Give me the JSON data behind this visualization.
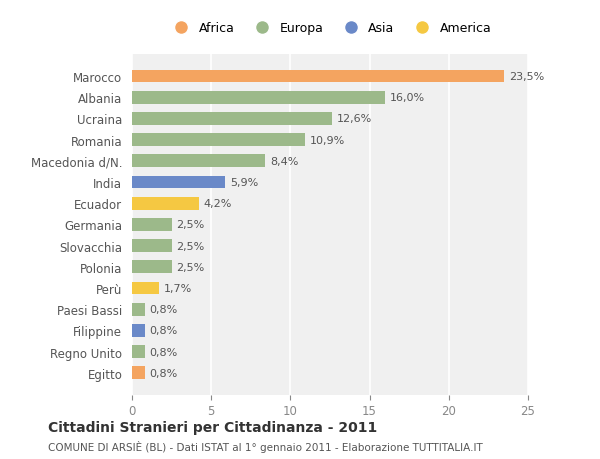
{
  "categories": [
    "Marocco",
    "Albania",
    "Ucraina",
    "Romania",
    "Macedonia d/N.",
    "India",
    "Ecuador",
    "Germania",
    "Slovacchia",
    "Polonia",
    "Perù",
    "Paesi Bassi",
    "Filippine",
    "Regno Unito",
    "Egitto"
  ],
  "values": [
    23.5,
    16.0,
    12.6,
    10.9,
    8.4,
    5.9,
    4.2,
    2.5,
    2.5,
    2.5,
    1.7,
    0.8,
    0.8,
    0.8,
    0.8
  ],
  "labels": [
    "23,5%",
    "16,0%",
    "12,6%",
    "10,9%",
    "8,4%",
    "5,9%",
    "4,2%",
    "2,5%",
    "2,5%",
    "2,5%",
    "1,7%",
    "0,8%",
    "0,8%",
    "0,8%",
    "0,8%"
  ],
  "colors": [
    "#F4A460",
    "#9CB98A",
    "#9CB98A",
    "#9CB98A",
    "#9CB98A",
    "#6A89C8",
    "#F5C842",
    "#9CB98A",
    "#9CB98A",
    "#9CB98A",
    "#F5C842",
    "#9CB98A",
    "#6A89C8",
    "#9CB98A",
    "#F4A460"
  ],
  "legend": [
    {
      "label": "Africa",
      "color": "#F4A460"
    },
    {
      "label": "Europa",
      "color": "#9CB98A"
    },
    {
      "label": "Asia",
      "color": "#6A89C8"
    },
    {
      "label": "America",
      "color": "#F5C842"
    }
  ],
  "title": "Cittadini Stranieri per Cittadinanza - 2011",
  "subtitle": "COMUNE DI ARSIÈ (BL) - Dati ISTAT al 1° gennaio 2011 - Elaborazione TUTTITALIA.IT",
  "xlim": [
    0,
    25
  ],
  "xticks": [
    0,
    5,
    10,
    15,
    20,
    25
  ],
  "background_color": "#ffffff",
  "plot_bg_color": "#f0f0f0"
}
